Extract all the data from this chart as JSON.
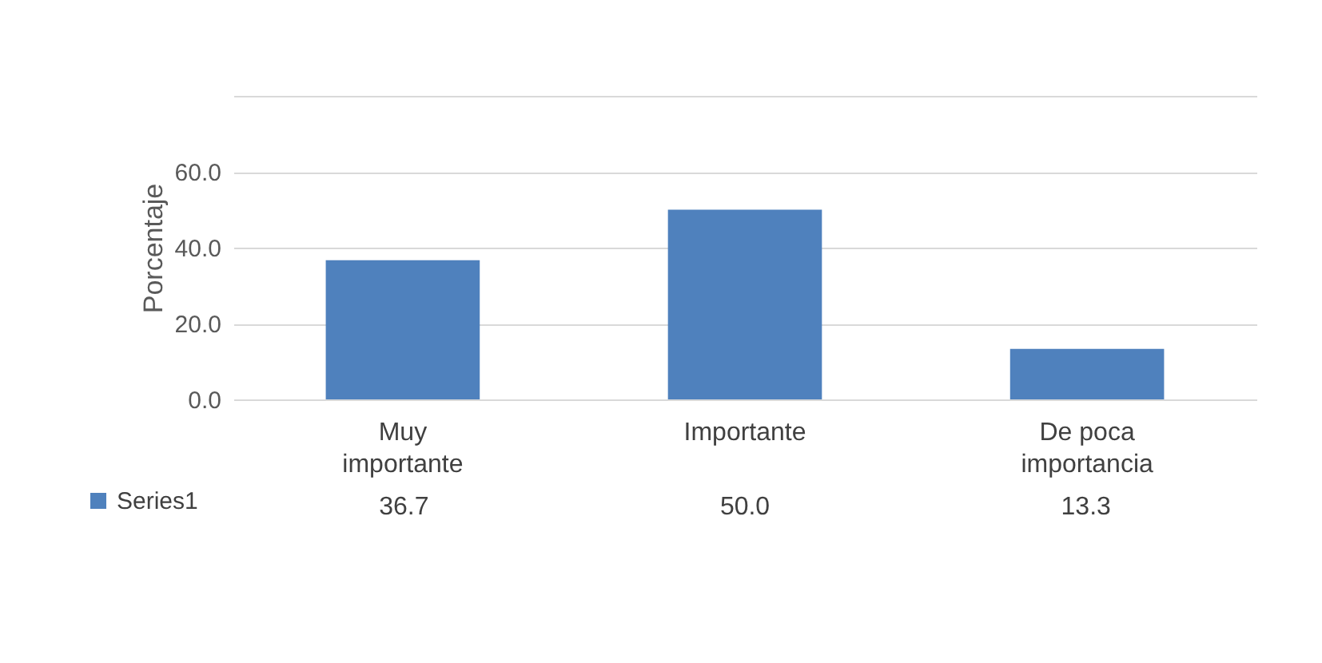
{
  "chart_data": {
    "type": "bar",
    "ylabel": "Porcentaje",
    "categories": [
      "Muy importante",
      "Importante",
      "De poca importancia"
    ],
    "series": [
      {
        "name": "Series1",
        "color": "#4f81bd",
        "values": [
          36.7,
          50.0,
          13.3
        ],
        "value_labels": [
          "36.7",
          "50.0",
          "13.3"
        ]
      }
    ],
    "ylim": [
      0,
      80
    ],
    "yticks": [
      {
        "value": 0,
        "label": "0.0"
      },
      {
        "value": 20,
        "label": "20.0"
      },
      {
        "value": 40,
        "label": "40.0"
      },
      {
        "value": 60,
        "label": "60.0"
      },
      {
        "value": 80,
        "label": null
      }
    ],
    "grid": "y",
    "legend": "bottom left"
  }
}
